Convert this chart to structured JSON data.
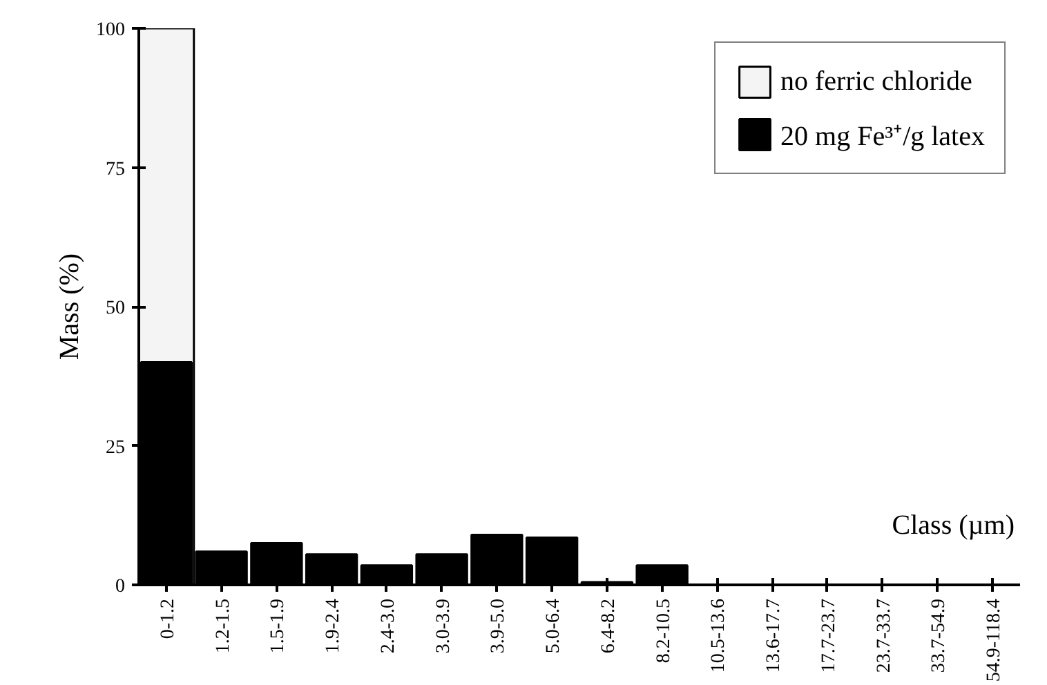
{
  "chart_data": {
    "type": "bar",
    "xlabel": "Class (µm)",
    "ylabel": "Mass (%)",
    "categories": [
      "0-1.2",
      "1.2-1.5",
      "1.5-1.9",
      "1.9-2.4",
      "2.4-3.0",
      "3.0-3.9",
      "3.9-5.0",
      "5.0-6.4",
      "6.4-8.2",
      "8.2-10.5",
      "10.5-13.6",
      "13.6-17.7",
      "17.7-23.7",
      "23.7-33.7",
      "33.7-54.9",
      "54.9-118.4"
    ],
    "series": [
      {
        "name": "no ferric chloride",
        "color": "#f4f4f4",
        "values": [
          100,
          null,
          null,
          null,
          null,
          null,
          null,
          null,
          null,
          null,
          null,
          null,
          null,
          null,
          null,
          null
        ]
      },
      {
        "name": "20 mg Fe³⁺/g latex",
        "color": "#000000",
        "values": [
          40,
          6,
          7.5,
          5.5,
          3.5,
          5.5,
          9,
          8.5,
          0.5,
          3.5,
          0,
          0,
          0,
          0,
          0,
          0
        ]
      }
    ],
    "ylim": [
      0,
      100
    ],
    "yticks": [
      0,
      25,
      50,
      75,
      100
    ],
    "grid": false,
    "legend": "top right"
  }
}
